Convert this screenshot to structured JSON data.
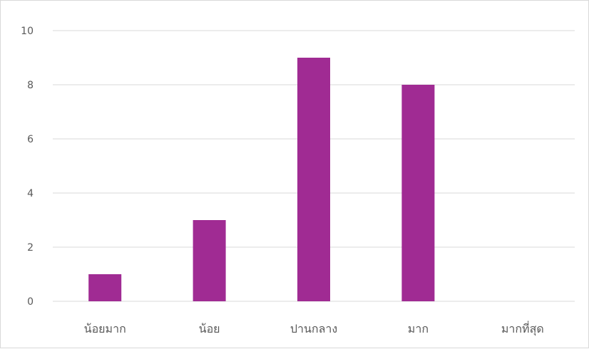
{
  "chart_data": {
    "type": "bar",
    "title": "",
    "xlabel": "",
    "ylabel": "",
    "categories": [
      "น้อยมาก",
      "น้อย",
      "ปานกลาง",
      "มาก",
      "มากที่สุด"
    ],
    "values": [
      1,
      3,
      9,
      8,
      0
    ],
    "ylim": [
      0,
      10
    ],
    "yticks": [
      0,
      2,
      4,
      6,
      8,
      10
    ],
    "ytick_labels": [
      "0",
      "2",
      "4",
      "6",
      "8",
      "10"
    ],
    "grid": true,
    "legend": "none",
    "bar_color": "#a02b93"
  }
}
